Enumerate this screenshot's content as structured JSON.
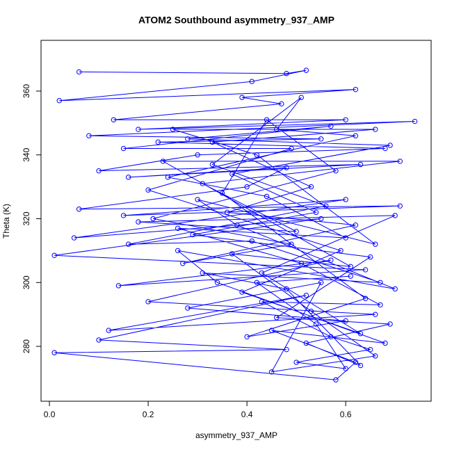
{
  "chart_data": {
    "type": "line",
    "title": "ATOM2 Southbound asymmetry_937_AMP",
    "x_label": "asymmetry_937_AMP",
    "y_label": "Theta (K)",
    "x": [
      0.06,
      0.48,
      0.52,
      0.41,
      0.02,
      0.62,
      0.39,
      0.47,
      0.13,
      0.6,
      0.18,
      0.74,
      0.08,
      0.55,
      0.22,
      0.68,
      0.3,
      0.1,
      0.63,
      0.16,
      0.48,
      0.4,
      0.06,
      0.71,
      0.15,
      0.6,
      0.05,
      0.55,
      0.01,
      0.64,
      0.14,
      0.57,
      0.2,
      0.66,
      0.12,
      0.52,
      0.1,
      0.48,
      0.01,
      0.58,
      0.62,
      0.45,
      0.68,
      0.34,
      0.26,
      0.7,
      0.38,
      0.3,
      0.66,
      0.42,
      0.25,
      0.66,
      0.33,
      0.53,
      0.36,
      0.62,
      0.27,
      0.49,
      0.21,
      0.58,
      0.44,
      0.35,
      0.64,
      0.4,
      0.6,
      0.28,
      0.55,
      0.45,
      0.66,
      0.53,
      0.37,
      0.61,
      0.23,
      0.71,
      0.31,
      0.5,
      0.18,
      0.7,
      0.43,
      0.63,
      0.39,
      0.59,
      0.2,
      0.49,
      0.15,
      0.57,
      0.28,
      0.69,
      0.37,
      0.54,
      0.29,
      0.65,
      0.46,
      0.69,
      0.52,
      0.63,
      0.48,
      0.31,
      0.67,
      0.41,
      0.16,
      0.56,
      0.33,
      0.51,
      0.46,
      0.62,
      0.24,
      0.44,
      0.6,
      0.26,
      0.51,
      0.67,
      0.43,
      0.57,
      0.65,
      0.5,
      0.6,
      0.54,
      0.42,
      0.61
    ],
    "series": [
      {
        "name": "Theta (K)",
        "color": "#0000ff",
        "values": [
          366,
          365.5,
          366.5,
          363,
          357,
          360.5,
          358,
          356,
          351,
          351,
          348,
          350.5,
          346,
          345,
          344,
          342,
          340,
          335,
          337,
          333,
          336,
          330,
          323,
          324,
          321,
          326,
          314,
          320,
          308.5,
          304,
          299,
          307,
          294,
          290,
          285,
          296,
          282,
          279,
          278,
          269.5,
          275,
          285,
          281,
          300,
          310,
          298,
          318,
          326,
          312,
          340,
          348,
          348,
          344,
          330,
          322,
          318,
          306,
          312,
          320,
          335,
          351,
          328,
          295,
          283,
          288,
          292,
          300,
          272,
          277,
          291,
          309,
          305,
          338,
          338,
          331,
          316,
          319,
          321,
          303,
          284,
          297,
          310,
          329,
          342,
          342,
          349,
          345,
          343,
          334,
          322,
          315,
          308,
          289,
          287,
          281,
          274,
          298,
          303,
          300,
          313,
          312,
          324,
          337,
          358,
          348,
          346,
          333,
          327,
          314,
          317,
          306,
          293,
          294,
          283,
          279,
          275,
          273,
          287,
          300,
          302
        ]
      }
    ],
    "xlim": [
      -0.017,
      0.773
    ],
    "ylim": [
      262.8,
      375.9
    ],
    "xticks": [
      {
        "value": 0,
        "label": "0.0"
      },
      0.2,
      0.4,
      0.6
    ],
    "yticks": [
      280,
      300,
      320,
      340,
      360
    ]
  }
}
